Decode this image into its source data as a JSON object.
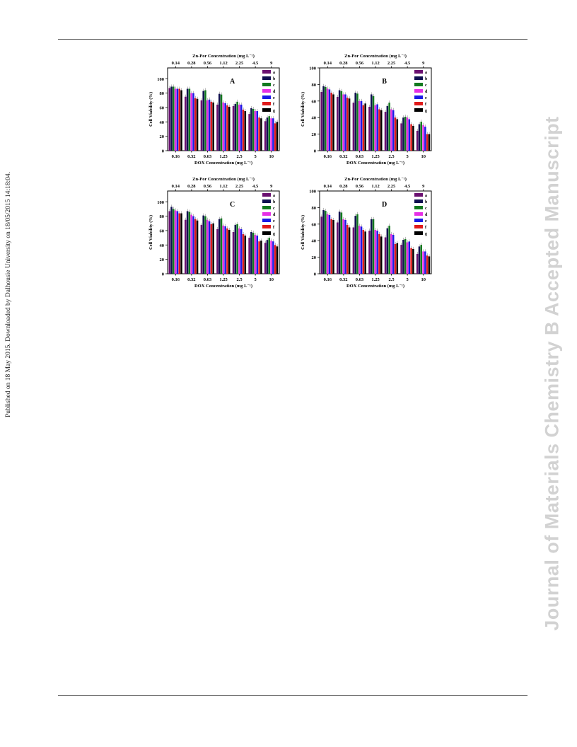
{
  "side_note": "Published on 18 May 2015. Downloaded by Dalhousie University on 18/05/2015 14:18:04.",
  "watermark": "Journal of Materials Chemistry B Accepted Manuscript",
  "colors": {
    "a": "#6a1070",
    "b": "#101050",
    "c": "#137a1f",
    "d": "#e62ee6",
    "e": "#1a1ae6",
    "f": "#e01a1a",
    "g": "#000000"
  },
  "legend_entries": [
    "a",
    "b",
    "c",
    "d",
    "e",
    "f",
    "g"
  ],
  "chart_data": [
    {
      "type": "bar",
      "panel_label": "A",
      "xlabel": "DOX Concentration (mg L⁻¹)",
      "x2label": "Zn-Por Concentration (mg L⁻¹)",
      "ylabel": "Cell Viability (%)",
      "categories": [
        "0.16",
        "0.32",
        "0.63",
        "1.25",
        "2.5",
        "5",
        "10"
      ],
      "top_categories": [
        "0.14",
        "0.28",
        "0.56",
        "1.12",
        "2.25",
        "4.5",
        "9"
      ],
      "ylim": [
        0,
        115
      ],
      "yticks": [
        0,
        20,
        40,
        60,
        80,
        100
      ],
      "series": [
        {
          "name": "a",
          "values": [
            87,
            75,
            70,
            64,
            62,
            51,
            41
          ]
        },
        {
          "name": "b",
          "values": [
            89,
            86,
            83,
            79,
            65,
            59,
            46
          ]
        },
        {
          "name": "c",
          "values": [
            89,
            86,
            84,
            78,
            68,
            58,
            48
          ]
        },
        {
          "name": "d",
          "values": [
            86,
            80,
            70,
            67,
            64,
            55,
            45
          ]
        },
        {
          "name": "e",
          "values": [
            86,
            80,
            71,
            66,
            64,
            55,
            45
          ]
        },
        {
          "name": "f",
          "values": [
            86,
            73,
            68,
            63,
            57,
            46,
            38
          ]
        },
        {
          "name": "g",
          "values": [
            84,
            72,
            67,
            61,
            55,
            45,
            40
          ]
        }
      ]
    },
    {
      "type": "bar",
      "panel_label": "B",
      "xlabel": "DOX Concentration (mg L⁻¹)",
      "x2label": "Zn-Por Concentration (mg L⁻¹)",
      "ylabel": "Cell Viability (%)",
      "categories": [
        "0.16",
        "0.32",
        "0.63",
        "1.25",
        "2.5",
        "5",
        "10"
      ],
      "top_categories": [
        "0.14",
        "0.28",
        "0.56",
        "1.12",
        "2.25",
        "4.5",
        "9"
      ],
      "ylim": [
        0,
        100
      ],
      "yticks": [
        0,
        20,
        40,
        60,
        80,
        100
      ],
      "series": [
        {
          "name": "a",
          "values": [
            71,
            65,
            58,
            53,
            47,
            33,
            24
          ]
        },
        {
          "name": "b",
          "values": [
            78,
            73,
            70,
            68,
            54,
            40,
            32
          ]
        },
        {
          "name": "c",
          "values": [
            77,
            72,
            69,
            66,
            58,
            41,
            35
          ]
        },
        {
          "name": "d",
          "values": [
            75,
            68,
            60,
            55,
            50,
            40,
            31
          ]
        },
        {
          "name": "e",
          "values": [
            74,
            68,
            60,
            56,
            49,
            38,
            29
          ]
        },
        {
          "name": "f",
          "values": [
            70,
            64,
            55,
            50,
            40,
            32,
            20
          ]
        },
        {
          "name": "g",
          "values": [
            68,
            63,
            57,
            49,
            38,
            30,
            20
          ]
        }
      ]
    },
    {
      "type": "bar",
      "panel_label": "C",
      "xlabel": "DOX Concentration (mg L⁻¹)",
      "x2label": "Zn-Por Concentration (mg L⁻¹)",
      "ylabel": "Cell Viability (%)",
      "categories": [
        "0.16",
        "0.32",
        "0.63",
        "1.25",
        "2.5",
        "5",
        "10"
      ],
      "top_categories": [
        "0.14",
        "0.28",
        "0.56",
        "1.12",
        "2.25",
        "4.5",
        "9"
      ],
      "ylim": [
        0,
        115
      ],
      "yticks": [
        0,
        20,
        40,
        60,
        80,
        100
      ],
      "series": [
        {
          "name": "a",
          "values": [
            87,
            75,
            68,
            62,
            58,
            50,
            43
          ]
        },
        {
          "name": "b",
          "values": [
            93,
            87,
            81,
            76,
            68,
            58,
            47
          ]
        },
        {
          "name": "c",
          "values": [
            90,
            86,
            80,
            77,
            69,
            57,
            50
          ]
        },
        {
          "name": "d",
          "values": [
            88,
            82,
            75,
            67,
            63,
            54,
            46
          ]
        },
        {
          "name": "e",
          "values": [
            87,
            80,
            73,
            66,
            62,
            53,
            45
          ]
        },
        {
          "name": "f",
          "values": [
            84,
            76,
            69,
            63,
            55,
            45,
            40
          ]
        },
        {
          "name": "g",
          "values": [
            84,
            74,
            70,
            61,
            53,
            46,
            38
          ]
        }
      ]
    },
    {
      "type": "bar",
      "panel_label": "D",
      "xlabel": "DOX Concentration (mg L⁻¹)",
      "x2label": "Zn-Por Concentration (mg L⁻¹)",
      "ylabel": "Cell Viability (%)",
      "categories": [
        "0.16",
        "0.32",
        "0.63",
        "1.25",
        "2.5",
        "5",
        "10"
      ],
      "top_categories": [
        "0.14",
        "0.28",
        "0.56",
        "1.12",
        "2.25",
        "4.5",
        "9"
      ],
      "ylim": [
        0,
        100
      ],
      "yticks": [
        0,
        20,
        40,
        60,
        80,
        100
      ],
      "series": [
        {
          "name": "a",
          "values": [
            69,
            62,
            56,
            52,
            44,
            35,
            24
          ]
        },
        {
          "name": "b",
          "values": [
            77,
            75,
            70,
            66,
            55,
            41,
            33
          ]
        },
        {
          "name": "c",
          "values": [
            76,
            74,
            72,
            66,
            58,
            42,
            35
          ]
        },
        {
          "name": "d",
          "values": [
            72,
            66,
            58,
            53,
            48,
            38,
            27
          ]
        },
        {
          "name": "e",
          "values": [
            71,
            65,
            57,
            52,
            47,
            39,
            27
          ]
        },
        {
          "name": "f",
          "values": [
            66,
            59,
            53,
            48,
            36,
            31,
            22
          ]
        },
        {
          "name": "g",
          "values": [
            65,
            56,
            51,
            45,
            37,
            30,
            21
          ]
        }
      ]
    }
  ]
}
